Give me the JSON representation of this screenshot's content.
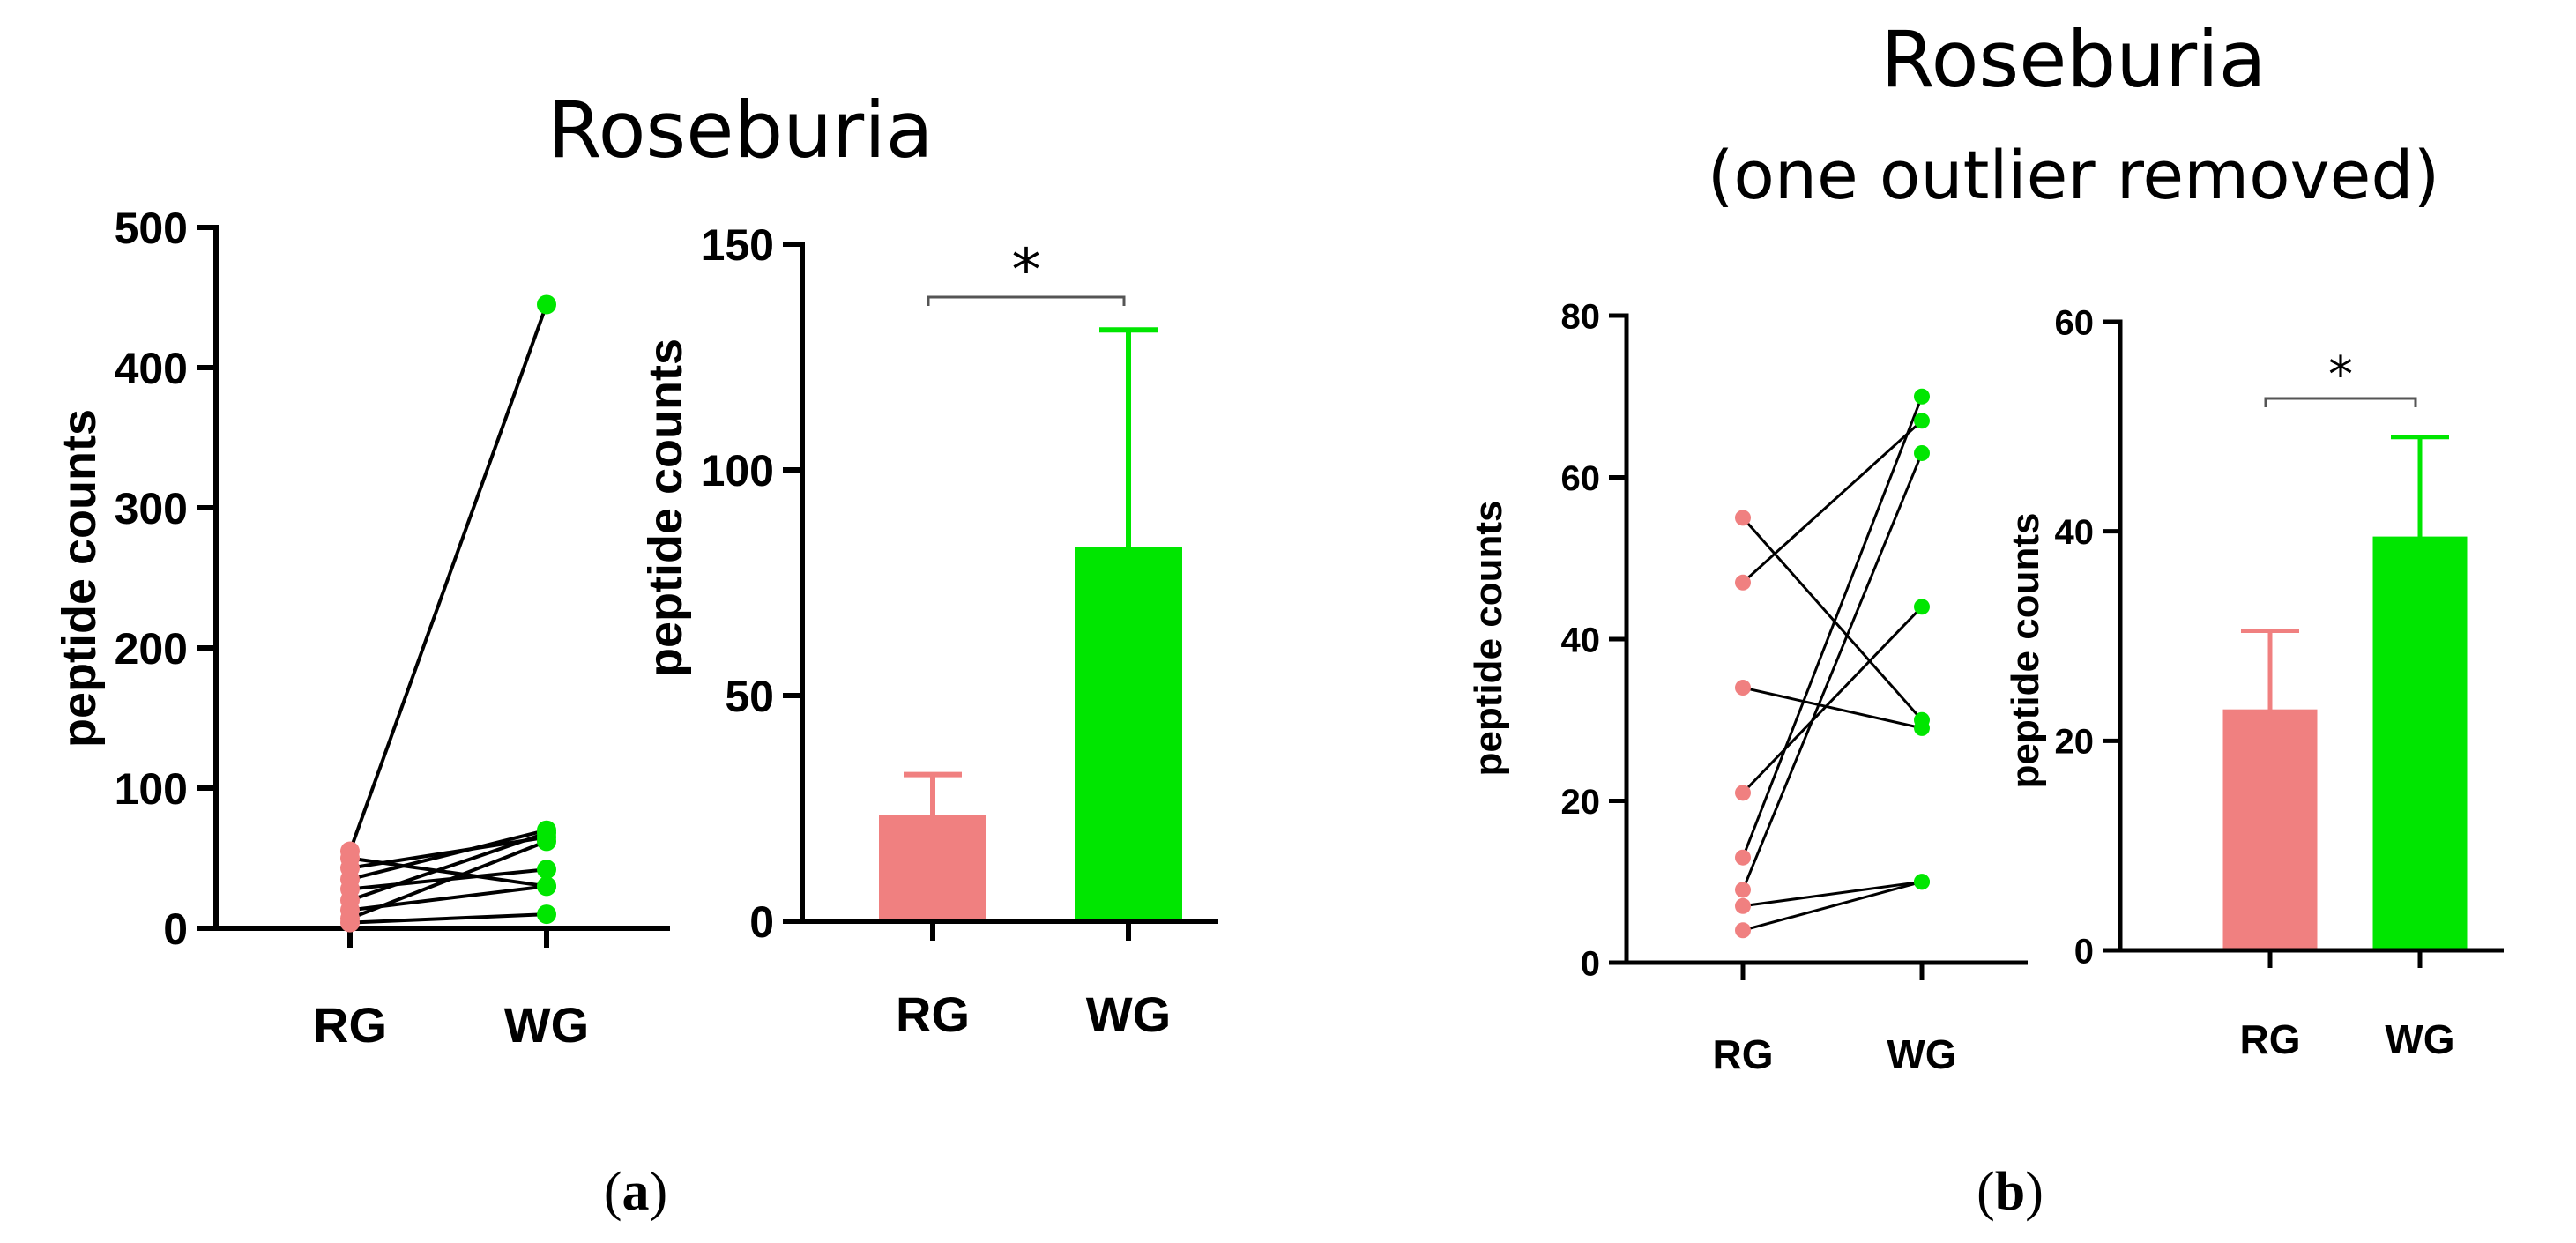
{
  "colors": {
    "rg": "#F08080",
    "wg": "#00E600",
    "axis": "#000000"
  },
  "panels": {
    "a": {
      "label_open": "(",
      "label_letter": "a",
      "label_close": ")",
      "title": "Roseburia"
    },
    "b": {
      "label_open": "(",
      "label_letter": "b",
      "label_close": ")",
      "title_line1": "Roseburia",
      "title_line2": "(one outlier removed)"
    }
  },
  "chart_data": [
    {
      "id": "a-paired",
      "type": "scatter",
      "subtype": "paired-lines",
      "title": "Roseburia",
      "ylabel": "peptide counts",
      "categories": [
        "RG",
        "WG"
      ],
      "ylim": [
        0,
        500
      ],
      "yticks": [
        0,
        100,
        200,
        300,
        400,
        500
      ],
      "pairs": [
        [
          55,
          445
        ],
        [
          50,
          30
        ],
        [
          43,
          65
        ],
        [
          35,
          70
        ],
        [
          28,
          42
        ],
        [
          20,
          68
        ],
        [
          13,
          30
        ],
        [
          7,
          62
        ],
        [
          4,
          10
        ]
      ]
    },
    {
      "id": "a-bar",
      "type": "bar",
      "title": "Roseburia",
      "ylabel": "peptide counts",
      "categories": [
        "RG",
        "WG"
      ],
      "values": [
        23.5,
        83
      ],
      "errors": [
        9,
        48
      ],
      "ylim": [
        0,
        150
      ],
      "yticks": [
        0,
        50,
        100,
        150
      ],
      "significance": "*"
    },
    {
      "id": "b-paired",
      "type": "scatter",
      "subtype": "paired-lines",
      "title": "Roseburia (one outlier removed)",
      "ylabel": "peptide counts",
      "categories": [
        "RG",
        "WG"
      ],
      "ylim": [
        0,
        80
      ],
      "yticks": [
        0,
        20,
        40,
        60,
        80
      ],
      "pairs": [
        [
          55,
          30
        ],
        [
          47,
          67
        ],
        [
          34,
          29
        ],
        [
          21,
          44
        ],
        [
          13,
          70
        ],
        [
          9,
          63
        ],
        [
          7,
          10
        ],
        [
          4,
          10
        ]
      ]
    },
    {
      "id": "b-bar",
      "type": "bar",
      "title": "Roseburia (one outlier removed)",
      "ylabel": "peptide counts",
      "categories": [
        "RG",
        "WG"
      ],
      "values": [
        23,
        39.5
      ],
      "errors": [
        7.5,
        9.5
      ],
      "ylim": [
        0,
        60
      ],
      "yticks": [
        0,
        20,
        40,
        60
      ],
      "significance": "*"
    }
  ]
}
